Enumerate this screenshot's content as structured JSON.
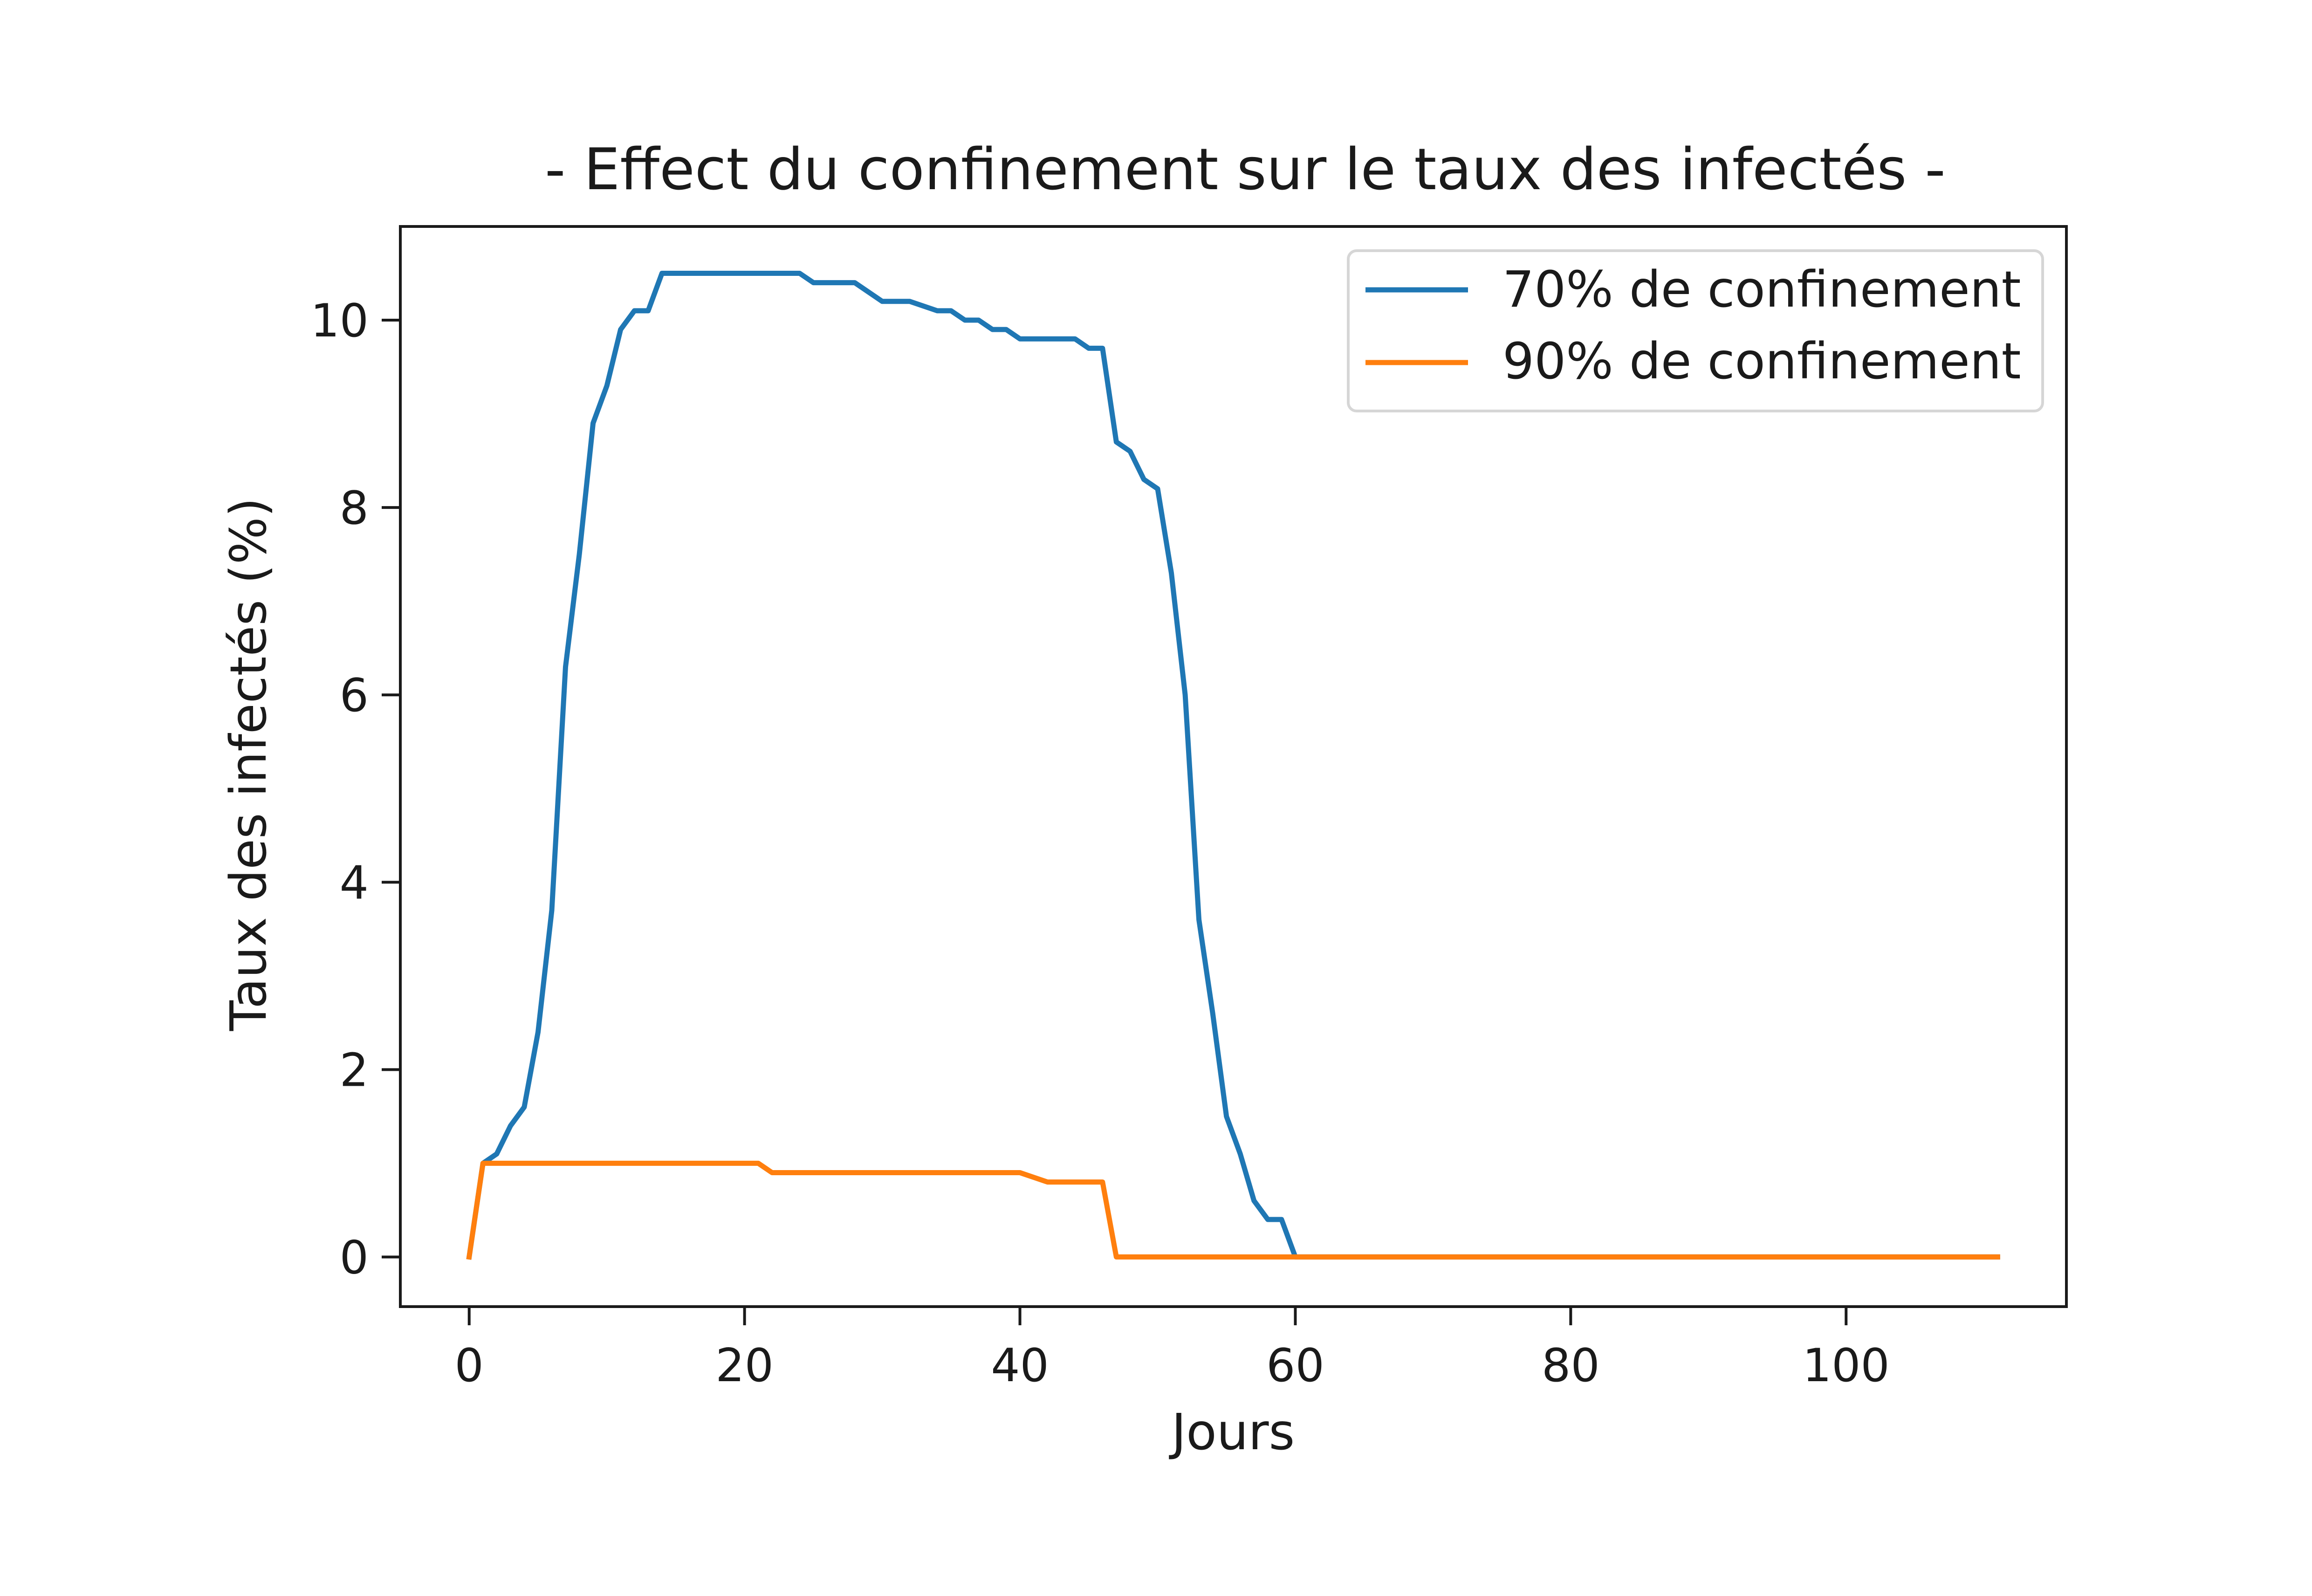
{
  "chart_data": {
    "type": "line",
    "title": "- Effect du confinement sur le taux des infectés -",
    "xlabel": "Jours",
    "ylabel": "Taux des infectés (%)",
    "xlim": [
      -5,
      116
    ],
    "ylim": [
      -0.53,
      11.0
    ],
    "xticks": [
      0,
      20,
      40,
      60,
      80,
      100
    ],
    "yticks": [
      0,
      2,
      4,
      6,
      8,
      10
    ],
    "grid": false,
    "legend_position": "top-right",
    "series": [
      {
        "name": "70% de confinement",
        "color": "#1f77b4",
        "x": [
          0,
          1,
          2,
          3,
          4,
          5,
          6,
          7,
          8,
          9,
          10,
          11,
          12,
          13,
          14,
          21,
          24,
          25,
          28,
          30,
          32,
          34,
          35,
          36,
          37,
          38,
          39,
          40,
          41,
          44,
          45,
          46,
          47,
          48,
          49,
          50,
          51,
          52,
          53,
          54,
          55,
          56,
          57,
          58,
          59,
          60,
          111
        ],
        "y": [
          0,
          1.0,
          1.1,
          1.4,
          1.6,
          2.4,
          3.7,
          6.3,
          7.5,
          8.9,
          9.3,
          9.9,
          10.1,
          10.1,
          10.5,
          10.5,
          10.5,
          10.4,
          10.4,
          10.2,
          10.2,
          10.1,
          10.1,
          10.0,
          10.0,
          9.9,
          9.9,
          9.8,
          9.8,
          9.8,
          9.7,
          9.7,
          8.7,
          8.6,
          8.3,
          8.2,
          7.3,
          6.0,
          3.6,
          2.6,
          1.5,
          1.1,
          0.6,
          0.4,
          0.4,
          0,
          0
        ]
      },
      {
        "name": "90% de confinement",
        "color": "#ff7f0e",
        "x": [
          0,
          1,
          21,
          22,
          40,
          41,
          42,
          45,
          46,
          47,
          111
        ],
        "y": [
          0,
          1.0,
          1.0,
          0.9,
          0.9,
          0.85,
          0.8,
          0.8,
          0.8,
          0,
          0
        ]
      }
    ]
  }
}
